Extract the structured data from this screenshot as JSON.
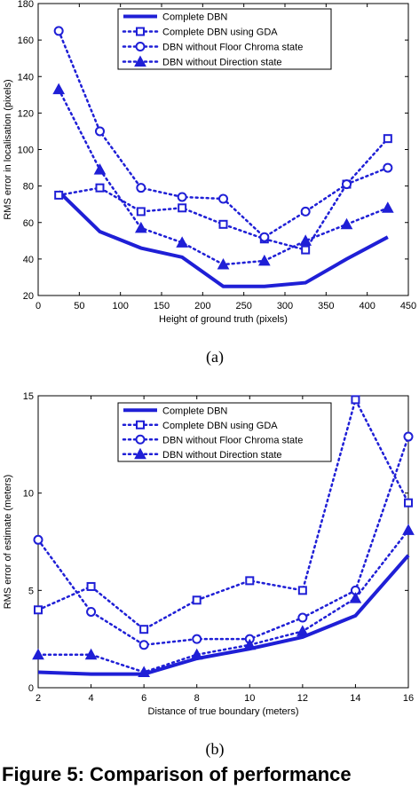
{
  "chart_data": [
    {
      "type": "line",
      "caption": "(a)",
      "xlabel": "Height of ground truth (pixels)",
      "ylabel": "RMS error in localisation (pixels)",
      "xlim": [
        0,
        450
      ],
      "ylim": [
        20,
        180
      ],
      "xticks": [
        0,
        50,
        100,
        150,
        200,
        250,
        300,
        350,
        400,
        450
      ],
      "yticks": [
        20,
        40,
        60,
        80,
        100,
        120,
        140,
        160,
        180
      ],
      "legend_position": "top-center",
      "series": [
        {
          "name": "Complete DBN",
          "style": "solid",
          "marker": "none",
          "x": [
            25,
            75,
            125,
            175,
            225,
            275,
            325,
            375,
            425
          ],
          "y": [
            77,
            55,
            46,
            41,
            25,
            25,
            27,
            40,
            52
          ]
        },
        {
          "name": "Complete DBN using GDA",
          "style": "dotted",
          "marker": "square",
          "x": [
            25,
            75,
            125,
            175,
            225,
            275,
            325,
            375,
            425
          ],
          "y": [
            75,
            79,
            66,
            68,
            59,
            51,
            45,
            81,
            106
          ]
        },
        {
          "name": "DBN without Floor Chroma state",
          "style": "dotted",
          "marker": "circle",
          "x": [
            25,
            75,
            125,
            175,
            225,
            275,
            325,
            375,
            425
          ],
          "y": [
            165,
            110,
            79,
            74,
            73,
            52,
            66,
            81,
            90
          ]
        },
        {
          "name": "DBN without Direction state",
          "style": "dotted",
          "marker": "triangle",
          "x": [
            25,
            75,
            125,
            175,
            225,
            275,
            325,
            375,
            425
          ],
          "y": [
            133,
            89,
            57,
            49,
            37,
            39,
            50,
            59,
            68
          ]
        }
      ]
    },
    {
      "type": "line",
      "caption": "(b)",
      "xlabel": "Distance of true boundary (meters)",
      "ylabel": "RMS error of estimate (meters)",
      "xlim": [
        2,
        16
      ],
      "ylim": [
        0,
        15
      ],
      "xticks": [
        2,
        4,
        6,
        8,
        10,
        12,
        14,
        16
      ],
      "yticks": [
        0,
        5,
        10,
        15
      ],
      "legend_position": "top-center",
      "series": [
        {
          "name": "Complete DBN",
          "style": "solid",
          "marker": "none",
          "x": [
            2,
            4,
            6,
            8,
            10,
            12,
            14,
            16
          ],
          "y": [
            0.8,
            0.7,
            0.7,
            1.5,
            2.0,
            2.6,
            3.7,
            6.8
          ]
        },
        {
          "name": "Complete DBN using GDA",
          "style": "dotted",
          "marker": "square",
          "x": [
            2,
            4,
            6,
            8,
            10,
            12,
            14,
            16
          ],
          "y": [
            4.0,
            5.2,
            3.0,
            4.5,
            5.5,
            5.0,
            14.8,
            9.5
          ]
        },
        {
          "name": "DBN without Floor Chroma state",
          "style": "dotted",
          "marker": "circle",
          "x": [
            2,
            4,
            6,
            8,
            10,
            12,
            14,
            16
          ],
          "y": [
            7.6,
            3.9,
            2.2,
            2.5,
            2.5,
            3.6,
            5.0,
            12.9
          ]
        },
        {
          "name": "DBN without Direction state",
          "style": "dotted",
          "marker": "triangle",
          "x": [
            2,
            4,
            6,
            8,
            10,
            12,
            14,
            16
          ],
          "y": [
            1.7,
            1.7,
            0.8,
            1.7,
            2.2,
            2.9,
            4.6,
            8.1
          ]
        }
      ]
    }
  ],
  "colors": {
    "line": "#1f1fd6",
    "axis": "#000000"
  },
  "footer_text": "Figure 5: Comparison of performance"
}
